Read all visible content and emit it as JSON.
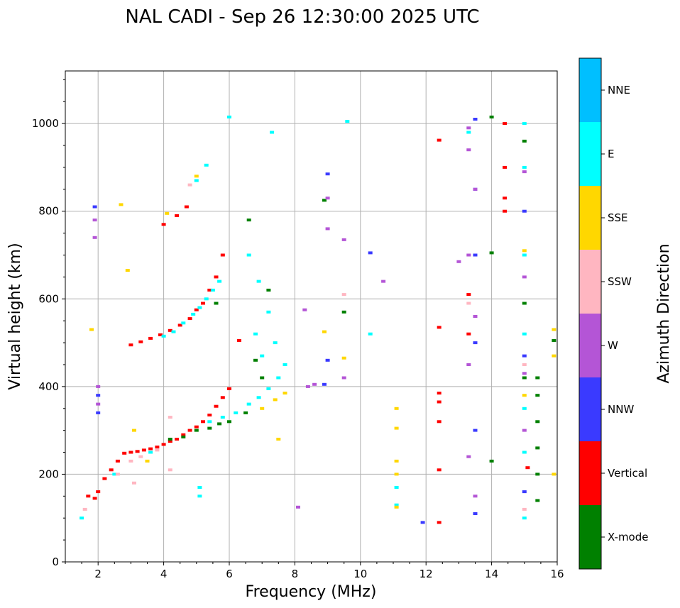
{
  "chart_data": {
    "type": "scatter",
    "title": "NAL CADI - Sep 26 12:30:00 2025 UTC",
    "xlabel": "Frequency (MHz)",
    "ylabel": "Virtual height (km)",
    "xlim": [
      1,
      16
    ],
    "ylim": [
      0,
      1120
    ],
    "xticks": [
      2,
      4,
      6,
      8,
      10,
      12,
      14,
      16
    ],
    "yticks": [
      0,
      200,
      400,
      600,
      800,
      1000
    ],
    "grid": true,
    "colorbar": {
      "label": "Azimuth Direction",
      "categories": [
        {
          "name": "X-mode",
          "color": "#008000"
        },
        {
          "name": "Vertical",
          "color": "#ff0000"
        },
        {
          "name": "NNW",
          "color": "#3a3aff"
        },
        {
          "name": "W",
          "color": "#b455d6"
        },
        {
          "name": "SSW",
          "color": "#ffb6c1"
        },
        {
          "name": "SSE",
          "color": "#ffd700"
        },
        {
          "name": "E",
          "color": "#00ffff"
        },
        {
          "name": "NNE",
          "color": "#00bfff"
        }
      ]
    },
    "series": [
      {
        "name": "Vertical",
        "points": [
          [
            1.7,
            150
          ],
          [
            1.9,
            145
          ],
          [
            2.0,
            160
          ],
          [
            2.2,
            190
          ],
          [
            2.4,
            210
          ],
          [
            2.6,
            230
          ],
          [
            2.8,
            248
          ],
          [
            3.0,
            250
          ],
          [
            3.2,
            252
          ],
          [
            3.4,
            255
          ],
          [
            3.6,
            258
          ],
          [
            3.8,
            262
          ],
          [
            4.0,
            268
          ],
          [
            4.2,
            275
          ],
          [
            4.4,
            280
          ],
          [
            4.6,
            290
          ],
          [
            4.8,
            300
          ],
          [
            5.0,
            308
          ],
          [
            5.2,
            320
          ],
          [
            5.4,
            335
          ],
          [
            5.6,
            355
          ],
          [
            5.8,
            375
          ],
          [
            6.0,
            395
          ],
          [
            6.3,
            505
          ],
          [
            3.0,
            495
          ],
          [
            3.3,
            502
          ],
          [
            3.6,
            510
          ],
          [
            3.9,
            518
          ],
          [
            4.2,
            528
          ],
          [
            4.5,
            540
          ],
          [
            4.8,
            555
          ],
          [
            5.0,
            575
          ],
          [
            5.2,
            590
          ],
          [
            5.4,
            620
          ],
          [
            5.6,
            650
          ],
          [
            5.8,
            700
          ],
          [
            4.0,
            770
          ],
          [
            4.4,
            790
          ],
          [
            4.7,
            810
          ],
          [
            12.4,
            962
          ],
          [
            12.4,
            535
          ],
          [
            12.4,
            385
          ],
          [
            12.4,
            365
          ],
          [
            12.4,
            320
          ],
          [
            12.4,
            210
          ],
          [
            12.4,
            90
          ],
          [
            13.3,
            610
          ],
          [
            13.3,
            520
          ],
          [
            14.4,
            1000
          ],
          [
            14.4,
            900
          ],
          [
            14.4,
            830
          ],
          [
            14.4,
            800
          ],
          [
            15.1,
            215
          ]
        ]
      },
      {
        "name": "E",
        "points": [
          [
            1.5,
            100
          ],
          [
            2.5,
            200
          ],
          [
            3.6,
            250
          ],
          [
            4.0,
            515
          ],
          [
            4.3,
            525
          ],
          [
            4.6,
            545
          ],
          [
            4.9,
            565
          ],
          [
            5.1,
            580
          ],
          [
            5.3,
            600
          ],
          [
            5.5,
            620
          ],
          [
            5.7,
            640
          ],
          [
            5.1,
            150
          ],
          [
            5.1,
            170
          ],
          [
            5.4,
            320
          ],
          [
            5.8,
            330
          ],
          [
            6.2,
            340
          ],
          [
            6.6,
            360
          ],
          [
            6.9,
            375
          ],
          [
            7.2,
            395
          ],
          [
            7.5,
            420
          ],
          [
            7.7,
            450
          ],
          [
            6.6,
            700
          ],
          [
            6.9,
            640
          ],
          [
            7.2,
            570
          ],
          [
            7.4,
            500
          ],
          [
            7.0,
            470
          ],
          [
            6.8,
            520
          ],
          [
            5.3,
            905
          ],
          [
            5.0,
            870
          ],
          [
            10.3,
            520
          ],
          [
            11.1,
            170
          ],
          [
            11.1,
            130
          ],
          [
            13.3,
            980
          ],
          [
            15.0,
            1000
          ],
          [
            15.0,
            900
          ],
          [
            15.0,
            700
          ],
          [
            15.0,
            520
          ],
          [
            15.0,
            350
          ],
          [
            15.0,
            250
          ],
          [
            15.0,
            100
          ],
          [
            7.3,
            980
          ],
          [
            9.6,
            1005
          ],
          [
            6.0,
            1015
          ]
        ]
      },
      {
        "name": "X-mode",
        "points": [
          [
            4.2,
            280
          ],
          [
            4.6,
            285
          ],
          [
            5.0,
            300
          ],
          [
            5.4,
            305
          ],
          [
            5.7,
            315
          ],
          [
            6.0,
            320
          ],
          [
            6.5,
            340
          ],
          [
            6.8,
            460
          ],
          [
            7.0,
            420
          ],
          [
            7.2,
            620
          ],
          [
            5.6,
            590
          ],
          [
            6.6,
            780
          ],
          [
            8.9,
            825
          ],
          [
            9.5,
            570
          ],
          [
            14.0,
            1015
          ],
          [
            14.0,
            705
          ],
          [
            14.0,
            230
          ],
          [
            15.0,
            960
          ],
          [
            15.0,
            590
          ],
          [
            15.0,
            420
          ],
          [
            15.4,
            420
          ],
          [
            15.4,
            380
          ],
          [
            15.4,
            320
          ],
          [
            15.4,
            260
          ],
          [
            15.4,
            200
          ],
          [
            15.4,
            140
          ],
          [
            15.9,
            505
          ]
        ]
      },
      {
        "name": "NNW",
        "points": [
          [
            1.9,
            810
          ],
          [
            2.0,
            380
          ],
          [
            2.0,
            340
          ],
          [
            8.9,
            405
          ],
          [
            9.0,
            460
          ],
          [
            9.0,
            885
          ],
          [
            10.3,
            705
          ],
          [
            11.9,
            90
          ],
          [
            13.5,
            1010
          ],
          [
            13.5,
            850
          ],
          [
            13.5,
            700
          ],
          [
            13.5,
            500
          ],
          [
            13.5,
            300
          ],
          [
            13.5,
            110
          ],
          [
            15.0,
            800
          ],
          [
            15.0,
            470
          ],
          [
            15.0,
            160
          ]
        ]
      },
      {
        "name": "W",
        "points": [
          [
            1.9,
            780
          ],
          [
            1.9,
            740
          ],
          [
            2.0,
            400
          ],
          [
            2.0,
            360
          ],
          [
            8.3,
            575
          ],
          [
            8.1,
            125
          ],
          [
            8.4,
            400
          ],
          [
            8.6,
            405
          ],
          [
            9.0,
            760
          ],
          [
            9.0,
            830
          ],
          [
            9.5,
            420
          ],
          [
            9.5,
            735
          ],
          [
            10.7,
            640
          ],
          [
            13.3,
            990
          ],
          [
            13.3,
            940
          ],
          [
            13.3,
            700
          ],
          [
            13.3,
            450
          ],
          [
            13.3,
            240
          ],
          [
            13.5,
            850
          ],
          [
            13.5,
            560
          ],
          [
            13.5,
            150
          ],
          [
            13.0,
            685
          ],
          [
            15.0,
            890
          ],
          [
            15.0,
            650
          ],
          [
            15.0,
            430
          ],
          [
            15.0,
            300
          ]
        ]
      },
      {
        "name": "SSW",
        "points": [
          [
            1.6,
            120
          ],
          [
            2.6,
            200
          ],
          [
            3.0,
            230
          ],
          [
            3.3,
            240
          ],
          [
            3.8,
            255
          ],
          [
            4.2,
            330
          ],
          [
            4.8,
            860
          ],
          [
            4.2,
            210
          ],
          [
            3.1,
            180
          ],
          [
            13.3,
            590
          ],
          [
            15.0,
            450
          ],
          [
            15.0,
            120
          ],
          [
            9.5,
            610
          ]
        ]
      },
      {
        "name": "SSE",
        "points": [
          [
            1.8,
            530
          ],
          [
            2.7,
            815
          ],
          [
            2.9,
            665
          ],
          [
            3.1,
            300
          ],
          [
            3.5,
            230
          ],
          [
            4.1,
            795
          ],
          [
            5.0,
            880
          ],
          [
            7.0,
            350
          ],
          [
            7.4,
            370
          ],
          [
            7.7,
            385
          ],
          [
            7.5,
            280
          ],
          [
            8.9,
            525
          ],
          [
            9.5,
            465
          ],
          [
            11.1,
            350
          ],
          [
            11.1,
            305
          ],
          [
            11.1,
            230
          ],
          [
            11.1,
            200
          ],
          [
            11.1,
            125
          ],
          [
            15.0,
            710
          ],
          [
            15.0,
            380
          ],
          [
            15.9,
            470
          ],
          [
            15.9,
            530
          ],
          [
            15.9,
            200
          ]
        ]
      },
      {
        "name": "NNE",
        "points": []
      }
    ]
  }
}
